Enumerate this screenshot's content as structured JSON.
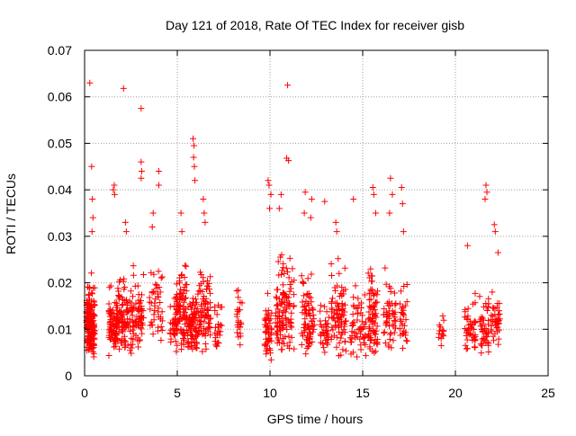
{
  "chart_data": {
    "type": "scatter",
    "title": "Day 121 of 2018, Rate Of TEC Index for receiver gisb",
    "xlabel": "GPS time / hours",
    "ylabel": "ROTI / TECUs",
    "xlim": [
      0,
      25
    ],
    "ylim": [
      0,
      0.07
    ],
    "x_ticks": [
      0,
      5,
      10,
      15,
      20,
      25
    ],
    "x_tick_labels": [
      "0",
      "5",
      "10",
      "15",
      "20",
      "25"
    ],
    "y_ticks": [
      0,
      0.01,
      0.02,
      0.03,
      0.04,
      0.05,
      0.06,
      0.07
    ],
    "y_tick_labels": [
      "0",
      "0.01",
      "0.02",
      "0.03",
      "0.04",
      "0.05",
      "0.06",
      "0.07"
    ],
    "grid": true,
    "marker": "+",
    "marker_color": "#ff0000",
    "axis_color": "#000000",
    "grid_color": "#a0a0a0",
    "series": [
      {
        "name": "ROTI",
        "clusters": [
          {
            "x": [
              0.1,
              0.55
            ],
            "y": [
              0.003,
              0.024
            ],
            "n": 170
          },
          {
            "x": [
              1.3,
              1.8
            ],
            "y": [
              0.003,
              0.022
            ],
            "n": 90
          },
          {
            "x": [
              1.8,
              2.5
            ],
            "y": [
              0.004,
              0.026
            ],
            "n": 85
          },
          {
            "x": [
              2.5,
              3.2
            ],
            "y": [
              0.004,
              0.026
            ],
            "n": 75
          },
          {
            "x": [
              3.5,
              4.2
            ],
            "y": [
              0.005,
              0.03
            ],
            "n": 45
          },
          {
            "x": [
              4.6,
              5.0
            ],
            "y": [
              0.004,
              0.02
            ],
            "n": 30
          },
          {
            "x": [
              4.9,
              5.5
            ],
            "y": [
              0.004,
              0.029
            ],
            "n": 85
          },
          {
            "x": [
              5.5,
              6.1
            ],
            "y": [
              0.004,
              0.022
            ],
            "n": 90
          },
          {
            "x": [
              6.1,
              6.8
            ],
            "y": [
              0.004,
              0.028
            ],
            "n": 80
          },
          {
            "x": [
              7.0,
              7.4
            ],
            "y": [
              0.005,
              0.018
            ],
            "n": 25
          },
          {
            "x": [
              8.2,
              8.5
            ],
            "y": [
              0.006,
              0.02
            ],
            "n": 25
          },
          {
            "x": [
              9.7,
              10.1
            ],
            "y": [
              0.002,
              0.02
            ],
            "n": 50
          },
          {
            "x": [
              10.3,
              10.8
            ],
            "y": [
              0.004,
              0.03
            ],
            "n": 70
          },
          {
            "x": [
              10.8,
              11.3
            ],
            "y": [
              0.004,
              0.03
            ],
            "n": 45
          },
          {
            "x": [
              11.7,
              12.4
            ],
            "y": [
              0.004,
              0.026
            ],
            "n": 75
          },
          {
            "x": [
              12.7,
              13.2
            ],
            "y": [
              0.004,
              0.018
            ],
            "n": 35
          },
          {
            "x": [
              13.3,
              14.1
            ],
            "y": [
              0.003,
              0.028
            ],
            "n": 85
          },
          {
            "x": [
              14.3,
              15.2
            ],
            "y": [
              0.003,
              0.022
            ],
            "n": 55
          },
          {
            "x": [
              15.3,
              15.8
            ],
            "y": [
              0.003,
              0.028
            ],
            "n": 75
          },
          {
            "x": [
              16.1,
              16.8
            ],
            "y": [
              0.004,
              0.026
            ],
            "n": 50
          },
          {
            "x": [
              17.0,
              17.4
            ],
            "y": [
              0.004,
              0.022
            ],
            "n": 30
          },
          {
            "x": [
              19.1,
              19.4
            ],
            "y": [
              0.006,
              0.015
            ],
            "n": 15
          },
          {
            "x": [
              20.5,
              21.1
            ],
            "y": [
              0.005,
              0.02
            ],
            "n": 45
          },
          {
            "x": [
              21.3,
              21.8
            ],
            "y": [
              0.004,
              0.02
            ],
            "n": 45
          },
          {
            "x": [
              21.9,
              22.4
            ],
            "y": [
              0.006,
              0.02
            ],
            "n": 40
          }
        ],
        "outliers": [
          [
            0.28,
            0.063
          ],
          [
            0.38,
            0.045
          ],
          [
            0.42,
            0.038
          ],
          [
            0.45,
            0.034
          ],
          [
            0.4,
            0.031
          ],
          [
            2.1,
            0.0618
          ],
          [
            3.05,
            0.0575
          ],
          [
            10.95,
            0.0625
          ],
          [
            5.85,
            0.051
          ],
          [
            5.9,
            0.0495
          ],
          [
            5.88,
            0.047
          ],
          [
            5.92,
            0.045
          ],
          [
            5.95,
            0.042
          ],
          [
            3.05,
            0.046
          ],
          [
            3.08,
            0.044
          ],
          [
            3.05,
            0.0425
          ],
          [
            4.0,
            0.044
          ],
          [
            4.0,
            0.041
          ],
          [
            1.6,
            0.041
          ],
          [
            1.62,
            0.039
          ],
          [
            1.55,
            0.04
          ],
          [
            2.2,
            0.033
          ],
          [
            2.25,
            0.031
          ],
          [
            3.7,
            0.035
          ],
          [
            3.65,
            0.032
          ],
          [
            5.2,
            0.035
          ],
          [
            5.25,
            0.031
          ],
          [
            6.4,
            0.038
          ],
          [
            6.45,
            0.035
          ],
          [
            6.5,
            0.033
          ],
          [
            9.9,
            0.042
          ],
          [
            9.95,
            0.041
          ],
          [
            10.05,
            0.039
          ],
          [
            9.98,
            0.036
          ],
          [
            10.9,
            0.0468
          ],
          [
            11.0,
            0.0463
          ],
          [
            10.6,
            0.039
          ],
          [
            10.5,
            0.036
          ],
          [
            11.9,
            0.0395
          ],
          [
            11.85,
            0.035
          ],
          [
            12.25,
            0.038
          ],
          [
            12.2,
            0.034
          ],
          [
            12.95,
            0.0375
          ],
          [
            13.55,
            0.033
          ],
          [
            13.6,
            0.031
          ],
          [
            15.55,
            0.0405
          ],
          [
            15.6,
            0.039
          ],
          [
            15.7,
            0.035
          ],
          [
            16.5,
            0.0425
          ],
          [
            16.6,
            0.039
          ],
          [
            16.45,
            0.035
          ],
          [
            17.1,
            0.0405
          ],
          [
            17.15,
            0.037
          ],
          [
            17.2,
            0.031
          ],
          [
            14.5,
            0.038
          ],
          [
            21.65,
            0.041
          ],
          [
            21.7,
            0.0395
          ],
          [
            21.6,
            0.038
          ],
          [
            20.65,
            0.028
          ],
          [
            22.1,
            0.0325
          ],
          [
            22.15,
            0.031
          ],
          [
            22.3,
            0.0265
          ]
        ]
      }
    ]
  }
}
